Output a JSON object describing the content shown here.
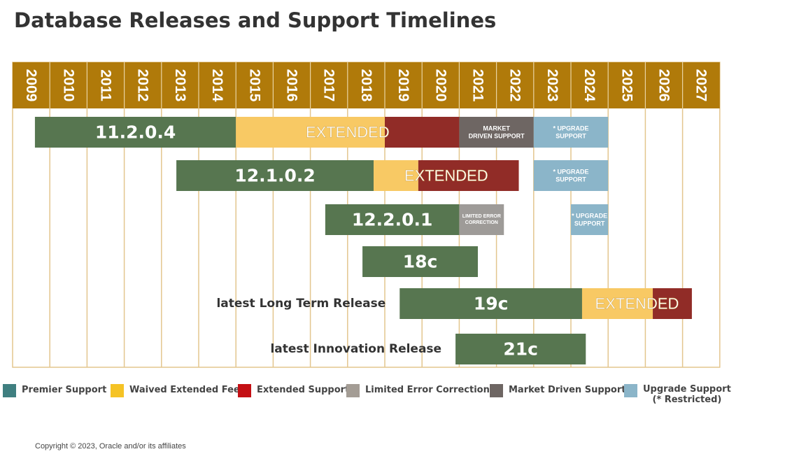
{
  "title": "Database Releases and Support Timelines",
  "copyright": "Copyright © 2023, Oracle and/or its affiliates",
  "colors": {
    "header": "#B07A0A",
    "grid": "#E3C68E",
    "premier": "#577650",
    "waived": "#F8C964",
    "extended": "#912C27",
    "limited": "#9E9B98",
    "market": "#6E6663",
    "upgrade": "#8BB5C9"
  },
  "legend": [
    {
      "key": "premier",
      "label": "Premier Support",
      "color": "#3F7F80"
    },
    {
      "key": "waived",
      "label": "Waived Extended Fee",
      "color": "#F5C325"
    },
    {
      "key": "extended",
      "label": "Extended Support",
      "color": "#C40F14"
    },
    {
      "key": "limited",
      "label": "Limited Error Correction",
      "color": "#A49D95"
    },
    {
      "key": "market",
      "label": "Market Driven Support",
      "color": "#6E6663"
    },
    {
      "key": "upgrade",
      "label": "Upgrade Support",
      "note": "(* Restricted)",
      "color": "#8BB5C9"
    }
  ],
  "chart_data": {
    "type": "gantt",
    "title": "Database Releases and Support Timelines",
    "years": [
      "2009",
      "2010",
      "2011",
      "2012",
      "2013",
      "2014",
      "2015",
      "2016",
      "2017",
      "2018",
      "2019",
      "2020",
      "2021",
      "2022",
      "2023",
      "2024",
      "2025",
      "2026",
      "2027"
    ],
    "releases": [
      {
        "name": "11.2.0.4",
        "row_label": "",
        "segments": [
          {
            "type": "premier",
            "start": 2009.6,
            "end": 2015.0,
            "label": "11.2.0.4"
          },
          {
            "type": "waived",
            "start": 2015.0,
            "end": 2019.0,
            "label": ""
          },
          {
            "type": "extended",
            "start": 2019.0,
            "end": 2021.0,
            "label": ""
          },
          {
            "type": "market",
            "start": 2021.0,
            "end": 2023.0,
            "label": "MARKET DRIVEN SUPPORT"
          },
          {
            "type": "upgrade",
            "start": 2023.0,
            "end": 2025.0,
            "label": "* UPGRADE SUPPORT"
          }
        ],
        "overlay_label": "EXTENDED",
        "overlay_start": 2015.0,
        "overlay_end": 2021.0
      },
      {
        "name": "12.1.0.2",
        "row_label": "",
        "segments": [
          {
            "type": "premier",
            "start": 2013.4,
            "end": 2018.7,
            "label": "12.1.0.2"
          },
          {
            "type": "waived",
            "start": 2018.7,
            "end": 2019.9,
            "label": ""
          },
          {
            "type": "extended",
            "start": 2019.9,
            "end": 2022.6,
            "label": ""
          },
          {
            "type": "upgrade",
            "start": 2023.0,
            "end": 2025.0,
            "label": "* UPGRADE SUPPORT"
          }
        ],
        "overlay_label": "EXTENDED",
        "overlay_start": 2018.7,
        "overlay_end": 2022.6
      },
      {
        "name": "12.2.0.1",
        "row_label": "",
        "segments": [
          {
            "type": "premier",
            "start": 2017.4,
            "end": 2021.0,
            "label": "12.2.0.1"
          },
          {
            "type": "limited",
            "start": 2021.0,
            "end": 2022.2,
            "label": "LIMITED ERROR CORRECTION"
          },
          {
            "type": "upgrade",
            "start": 2024.0,
            "end": 2025.0,
            "label": "* UPGRADE SUPPORT"
          }
        ]
      },
      {
        "name": "18c",
        "row_label": "",
        "segments": [
          {
            "type": "premier",
            "start": 2018.4,
            "end": 2021.5,
            "label": "18c"
          }
        ]
      },
      {
        "name": "19c",
        "row_label": "latest Long Term Release",
        "segments": [
          {
            "type": "premier",
            "start": 2019.4,
            "end": 2024.3,
            "label": "19c"
          },
          {
            "type": "waived",
            "start": 2024.3,
            "end": 2026.2,
            "label": ""
          },
          {
            "type": "extended",
            "start": 2026.2,
            "end": 2027.25,
            "label": ""
          }
        ],
        "overlay_label": "EXTENDED",
        "overlay_start": 2024.3,
        "overlay_end": 2027.25
      },
      {
        "name": "21c",
        "row_label": "latest Innovation Release",
        "segments": [
          {
            "type": "premier",
            "start": 2020.9,
            "end": 2024.4,
            "label": "21c"
          }
        ]
      }
    ]
  }
}
